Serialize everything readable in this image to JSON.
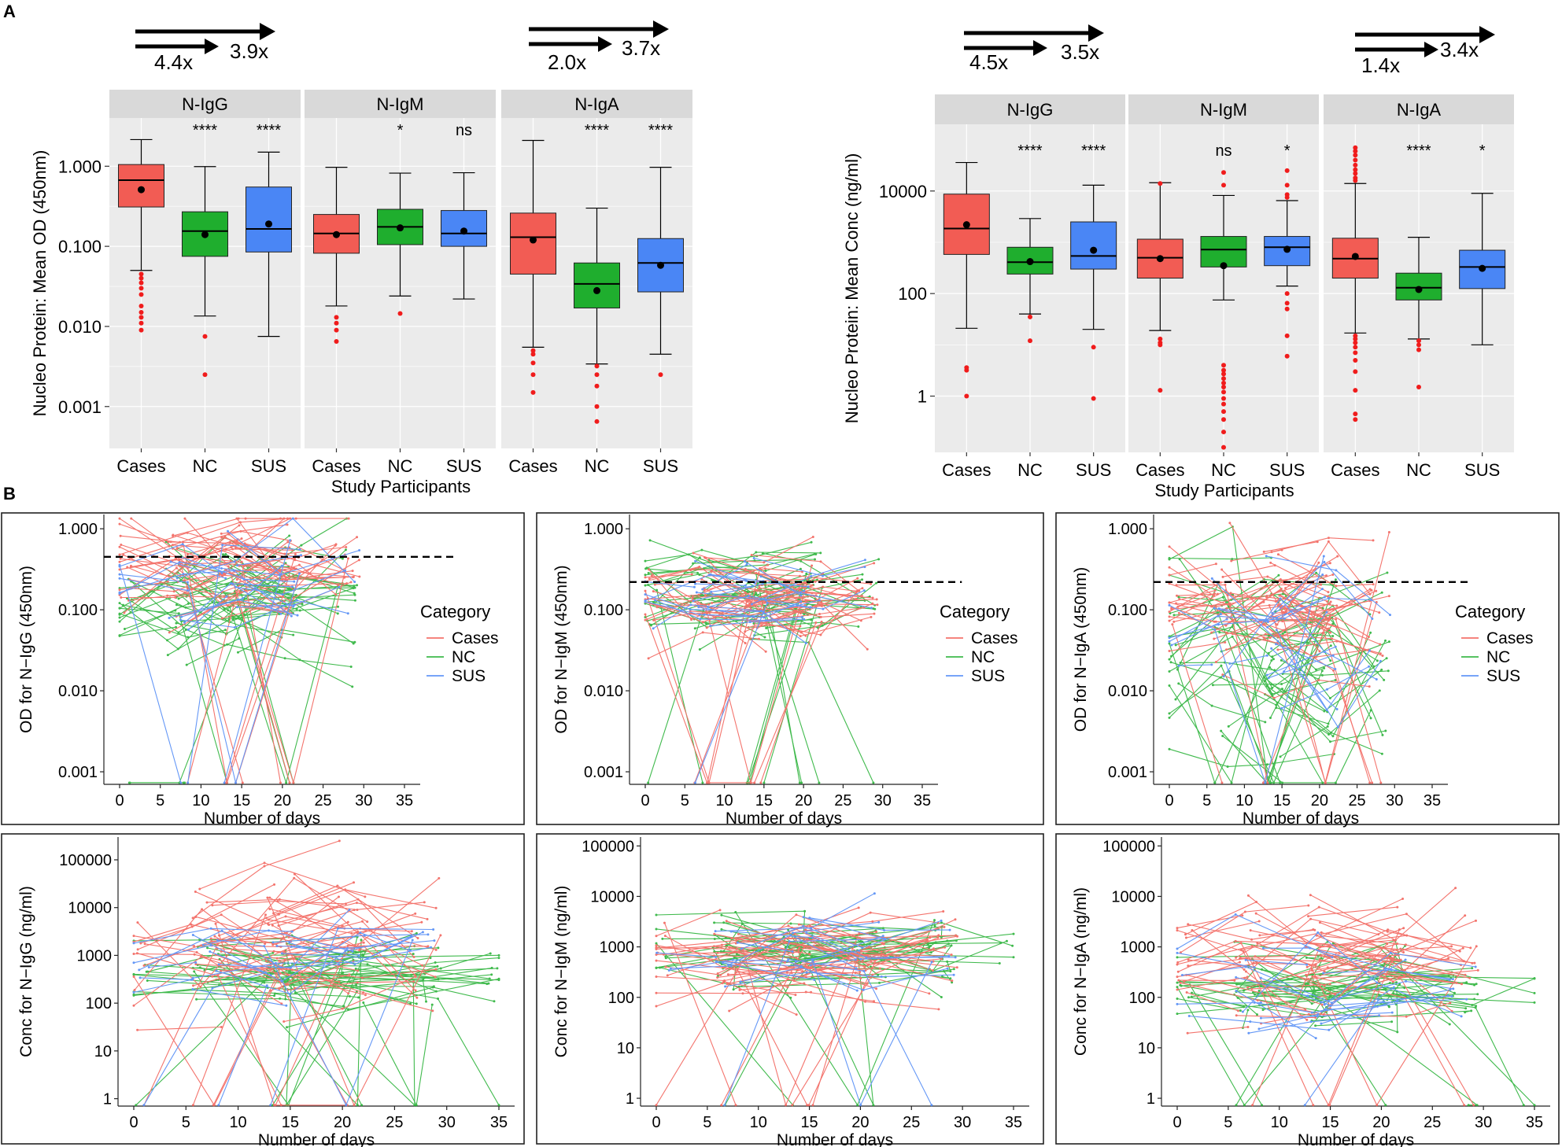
{
  "figure": {
    "panel_labels": [
      "A",
      "B"
    ],
    "colors": {
      "Cases": "#F25C54",
      "NC": "#1FAE2E",
      "SUS": "#4A86F5",
      "panel_bg": "#EBEBEB",
      "strip_bg": "#D9D9D9",
      "grid": "#FFFFFF",
      "outlier": "#F01C1C"
    }
  },
  "chart_data": [
    {
      "id": "A-left",
      "type": "box",
      "ylabel": "Nucleo Protein: Mean OD (450nm)",
      "xlabel": "Study Participants",
      "yscale": "log10",
      "ylim": [
        0.0003,
        4
      ],
      "yticks": [
        0.001,
        0.01,
        0.1,
        1
      ],
      "ytick_labels": [
        "0.001",
        "0.010",
        "0.100",
        "1.000"
      ],
      "categories": [
        "Cases",
        "NC",
        "SUS"
      ],
      "facets": [
        {
          "strip": "N-IgG",
          "sig": [
            "",
            "****",
            "****"
          ],
          "boxes": [
            {
              "cat": "Cases",
              "q1": 0.31,
              "median": 0.67,
              "q3": 1.05,
              "lo": 0.05,
              "hi": 2.15,
              "mean": 0.51,
              "outliers": [
                0.045,
                0.04,
                0.035,
                0.03,
                0.025,
                0.018,
                0.015,
                0.013,
                0.011,
                0.009
              ]
            },
            {
              "cat": "NC",
              "q1": 0.075,
              "median": 0.155,
              "q3": 0.27,
              "lo": 0.0135,
              "hi": 0.99,
              "mean": 0.14,
              "outliers": [
                0.0075,
                0.0025
              ]
            },
            {
              "cat": "SUS",
              "q1": 0.085,
              "median": 0.165,
              "q3": 0.55,
              "lo": 0.0075,
              "hi": 1.5,
              "mean": 0.19,
              "outliers": []
            }
          ]
        },
        {
          "strip": "N-IgM",
          "sig": [
            "",
            "*",
            "ns"
          ],
          "boxes": [
            {
              "cat": "Cases",
              "q1": 0.082,
              "median": 0.145,
              "q3": 0.25,
              "lo": 0.018,
              "hi": 0.97,
              "mean": 0.14,
              "outliers": [
                0.013,
                0.011,
                0.009,
                0.0065
              ]
            },
            {
              "cat": "NC",
              "q1": 0.105,
              "median": 0.175,
              "q3": 0.29,
              "lo": 0.024,
              "hi": 0.82,
              "mean": 0.17,
              "outliers": [
                0.0145
              ]
            },
            {
              "cat": "SUS",
              "q1": 0.1,
              "median": 0.145,
              "q3": 0.28,
              "lo": 0.022,
              "hi": 0.83,
              "mean": 0.155,
              "outliers": []
            }
          ]
        },
        {
          "strip": "N-IgA",
          "sig": [
            "",
            "****",
            "****"
          ],
          "boxes": [
            {
              "cat": "Cases",
              "q1": 0.045,
              "median": 0.13,
              "q3": 0.26,
              "lo": 0.0055,
              "hi": 2.1,
              "mean": 0.12,
              "outliers": [
                0.005,
                0.0045,
                0.0035,
                0.0025,
                0.0015
              ]
            },
            {
              "cat": "NC",
              "q1": 0.017,
              "median": 0.034,
              "q3": 0.062,
              "lo": 0.0034,
              "hi": 0.3,
              "mean": 0.028,
              "outliers": [
                0.0032,
                0.0025,
                0.0018,
                0.001,
                0.00065
              ]
            },
            {
              "cat": "SUS",
              "q1": 0.027,
              "median": 0.062,
              "q3": 0.125,
              "lo": 0.0045,
              "hi": 0.97,
              "mean": 0.058,
              "outliers": [
                0.0025
              ]
            }
          ]
        }
      ]
    },
    {
      "id": "A-right",
      "type": "box",
      "ylabel": "Nucleo Protein: Mean Conc (ng/ml)",
      "xlabel": "Study Participants",
      "yscale": "log10",
      "ylim": [
        0.08,
        200000
      ],
      "yticks": [
        1,
        100,
        10000
      ],
      "ytick_labels": [
        "1",
        "100",
        "10000"
      ],
      "categories": [
        "Cases",
        "NC",
        "SUS"
      ],
      "facets": [
        {
          "strip": "N-IgG",
          "sig": [
            "",
            "****",
            "****"
          ],
          "boxes": [
            {
              "cat": "Cases",
              "q1": 580,
              "median": 1850,
              "q3": 8700,
              "lo": 21,
              "hi": 36000,
              "mean": 2200,
              "outliers": [
                3.6,
                3.2,
                1
              ]
            },
            {
              "cat": "NC",
              "q1": 240,
              "median": 410,
              "q3": 800,
              "lo": 40,
              "hi": 2900,
              "mean": 420,
              "outliers": [
                35,
                12
              ]
            },
            {
              "cat": "SUS",
              "q1": 300,
              "median": 540,
              "q3": 2500,
              "lo": 20,
              "hi": 13000,
              "mean": 700,
              "outliers": [
                9,
                0.9
              ]
            }
          ]
        },
        {
          "strip": "N-IgM",
          "sig": [
            "",
            "ns",
            "*"
          ],
          "boxes": [
            {
              "cat": "Cases",
              "q1": 200,
              "median": 500,
              "q3": 1150,
              "lo": 19,
              "hi": 14500,
              "mean": 480,
              "outliers": [
                14000,
                13,
                11,
                10,
                1.3
              ]
            },
            {
              "cat": "NC",
              "q1": 330,
              "median": 720,
              "q3": 1300,
              "lo": 75,
              "hi": 8200,
              "mean": 350,
              "outliers": [
                23000,
                13000,
                4,
                3.2,
                2.7,
                2.2,
                1.8,
                1.5,
                1.2,
                0.9,
                0.7,
                0.5,
                0.35,
                0.2,
                0.1
              ]
            },
            {
              "cat": "SUS",
              "q1": 350,
              "median": 800,
              "q3": 1300,
              "lo": 140,
              "hi": 6500,
              "mean": 730,
              "outliers": [
                25000,
                13000,
                8500,
                7500,
                100,
                65,
                50,
                15,
                6
              ]
            },
            "..."
          ]
        },
        {
          "strip": "N-IgA",
          "sig": [
            "",
            "****",
            "*"
          ],
          "boxes": [
            {
              "cat": "Cases",
              "q1": 200,
              "median": 480,
              "q3": 1200,
              "lo": 17,
              "hi": 14000,
              "mean": 530,
              "outliers": [
                70000,
                60000,
                50000,
                40000,
                32000,
                26000,
                22000,
                18000,
                16000,
                15,
                13,
                11,
                9,
                7,
                5,
                3,
                1.3,
                0.45,
                0.35
              ]
            },
            {
              "cat": "NC",
              "q1": 75,
              "median": 130,
              "q3": 250,
              "lo": 13,
              "hi": 1250,
              "mean": 120,
              "outliers": [
                12,
                10,
                8,
                1.5
              ]
            },
            {
              "cat": "SUS",
              "q1": 125,
              "median": 330,
              "q3": 700,
              "lo": 10,
              "hi": 9000,
              "mean": 310,
              "outliers": []
            }
          ]
        }
      ]
    }
  ],
  "fold_changes": [
    {
      "short": "4.4x",
      "long": "3.9x"
    },
    {
      "short": "2.0x",
      "long": "3.7x"
    },
    {
      "short": "4.5x",
      "long": "3.5x"
    },
    {
      "short": "1.4x",
      "long": "3.4x"
    }
  ],
  "panel_b": {
    "xlabel": "Number of days",
    "legend_title": "Category",
    "legend_items": [
      "Cases",
      "NC",
      "SUS"
    ],
    "xticks": [
      0,
      5,
      10,
      15,
      20,
      25,
      30,
      35
    ],
    "od_ticks": [
      "0.001",
      "0.010",
      "0.100",
      "1.000"
    ],
    "conc_ticks": [
      "1",
      "10",
      "100",
      "1000",
      "10000",
      "100000"
    ],
    "plots": [
      {
        "id": "B-od-igg",
        "type": "line",
        "ylabel": "OD for N−IgG (450nm)",
        "ylim": [
          0.0007,
          1.5
        ],
        "cutoff": 0.45
      },
      {
        "id": "B-od-igm",
        "type": "line",
        "ylabel": "OD for N−IgM (450nm)",
        "ylim": [
          0.0007,
          1.5
        ],
        "cutoff": 0.22
      },
      {
        "id": "B-od-iga",
        "type": "line",
        "ylabel": "OD for N−IgA (450nm)",
        "ylim": [
          0.0007,
          1.5
        ],
        "cutoff": 0.22
      },
      {
        "id": "B-conc-igg",
        "type": "line",
        "ylabel": "Conc for N−IgG (ng/ml)",
        "ylim": [
          0.7,
          300000
        ]
      },
      {
        "id": "B-conc-igm",
        "type": "line",
        "ylabel": "Conc for N−IgM (ng/ml)",
        "ylim": [
          0.7,
          150000
        ]
      },
      {
        "id": "B-conc-iga",
        "type": "line",
        "ylabel": "Conc for N−IgA (ng/ml)",
        "ylim": [
          0.7,
          150000
        ]
      }
    ]
  }
}
